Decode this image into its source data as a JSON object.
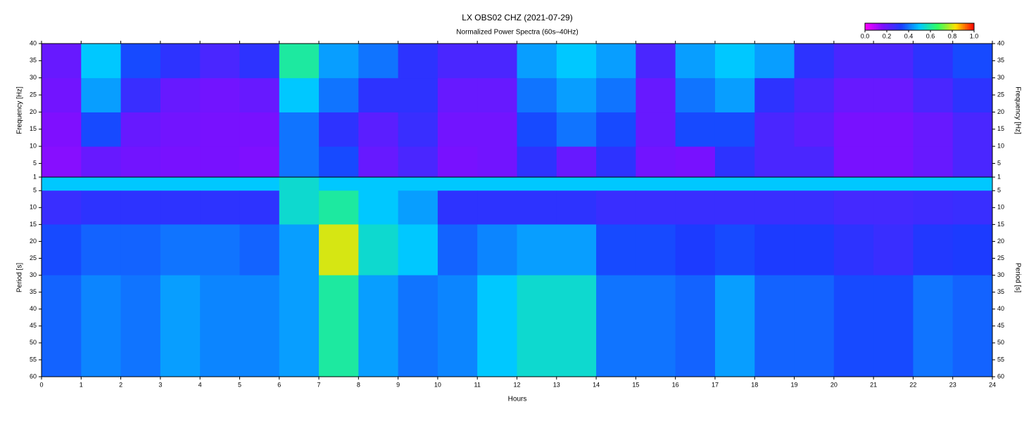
{
  "chart_data": [
    {
      "type": "heatmap",
      "title": "LX OBS02 CHZ (2021-07-29)",
      "subtitle": "Normalized Power Spectra (60s–40Hz)",
      "ylabel": "Frequency [Hz]",
      "xlim": [
        0,
        24
      ],
      "ylim": [
        1,
        40
      ],
      "yticks": [
        5,
        10,
        15,
        20,
        25,
        30,
        35,
        40
      ],
      "x_bins": [
        0,
        1,
        2,
        3,
        4,
        5,
        6,
        7,
        8,
        9,
        10,
        11,
        12,
        13,
        14,
        15,
        16,
        17,
        18,
        19,
        20,
        21,
        22,
        23,
        24
      ],
      "y_bins": [
        1,
        10,
        20,
        30,
        40
      ],
      "z": [
        [
          0.15,
          0.2,
          0.18,
          0.17,
          0.17,
          0.16,
          0.4,
          0.35,
          0.2,
          0.25,
          0.17,
          0.18,
          0.3,
          0.2,
          0.3,
          0.18,
          0.17,
          0.3,
          0.25,
          0.25,
          0.17,
          0.17,
          0.2,
          0.25
        ],
        [
          0.16,
          0.35,
          0.2,
          0.18,
          0.17,
          0.17,
          0.4,
          0.3,
          0.22,
          0.28,
          0.18,
          0.18,
          0.35,
          0.4,
          0.35,
          0.2,
          0.35,
          0.35,
          0.25,
          0.22,
          0.17,
          0.17,
          0.2,
          0.25
        ],
        [
          0.18,
          0.45,
          0.28,
          0.2,
          0.18,
          0.2,
          0.5,
          0.4,
          0.3,
          0.3,
          0.2,
          0.2,
          0.4,
          0.45,
          0.4,
          0.2,
          0.4,
          0.45,
          0.3,
          0.25,
          0.2,
          0.2,
          0.25,
          0.3
        ],
        [
          0.2,
          0.5,
          0.35,
          0.3,
          0.25,
          0.3,
          0.6,
          0.45,
          0.4,
          0.3,
          0.25,
          0.25,
          0.45,
          0.5,
          0.45,
          0.25,
          0.45,
          0.5,
          0.45,
          0.3,
          0.25,
          0.25,
          0.3,
          0.35
        ]
      ],
      "colorscale": [
        "#ff00ff",
        "#7a10ff",
        "#1a3cff",
        "#00c8ff",
        "#30ff60",
        "#ffe000",
        "#ff0000"
      ],
      "colorbar_ticks": [
        {
          "value": 0,
          "label": "0.0"
        },
        {
          "value": 0.2,
          "label": "0.2"
        },
        {
          "value": 0.4,
          "label": "0.4"
        },
        {
          "value": 0.6,
          "label": "0.6"
        },
        {
          "value": 0.8,
          "label": "0.8"
        },
        {
          "value": 1,
          "label": "1.0"
        }
      ],
      "zlim": [
        0,
        1
      ]
    },
    {
      "type": "heatmap",
      "ylabel": "Period [s]",
      "xlabel": "Hours",
      "xlim": [
        0,
        24
      ],
      "xticks": [
        0,
        1,
        2,
        3,
        4,
        5,
        6,
        7,
        8,
        9,
        10,
        11,
        12,
        13,
        14,
        15,
        16,
        17,
        18,
        19,
        20,
        21,
        22,
        23,
        24
      ],
      "ylim": [
        1,
        60
      ],
      "yticks": [
        1,
        5,
        10,
        15,
        20,
        25,
        30,
        35,
        40,
        45,
        50,
        55,
        60
      ],
      "inverted": true,
      "x_bins": [
        0,
        1,
        2,
        3,
        4,
        5,
        6,
        7,
        8,
        9,
        10,
        11,
        12,
        13,
        14,
        15,
        16,
        17,
        18,
        19,
        20,
        21,
        22,
        23,
        24
      ],
      "y_bins": [
        1,
        5,
        15,
        30,
        60
      ],
      "z": [
        [
          0.5,
          0.5,
          0.5,
          0.5,
          0.5,
          0.5,
          0.55,
          0.5,
          0.5,
          0.5,
          0.5,
          0.5,
          0.5,
          0.5,
          0.5,
          0.5,
          0.5,
          0.5,
          0.5,
          0.5,
          0.5,
          0.5,
          0.5,
          0.5
        ],
        [
          0.28,
          0.3,
          0.3,
          0.3,
          0.3,
          0.3,
          0.55,
          0.6,
          0.5,
          0.45,
          0.3,
          0.3,
          0.3,
          0.3,
          0.28,
          0.28,
          0.28,
          0.28,
          0.28,
          0.28,
          0.26,
          0.26,
          0.27,
          0.28
        ],
        [
          0.35,
          0.38,
          0.38,
          0.4,
          0.4,
          0.38,
          0.45,
          0.8,
          0.55,
          0.5,
          0.38,
          0.42,
          0.45,
          0.45,
          0.35,
          0.35,
          0.33,
          0.35,
          0.33,
          0.33,
          0.3,
          0.28,
          0.32,
          0.33
        ],
        [
          0.38,
          0.42,
          0.4,
          0.45,
          0.42,
          0.42,
          0.45,
          0.6,
          0.45,
          0.4,
          0.42,
          0.5,
          0.55,
          0.55,
          0.4,
          0.4,
          0.38,
          0.45,
          0.38,
          0.38,
          0.35,
          0.35,
          0.4,
          0.38
        ]
      ]
    }
  ]
}
